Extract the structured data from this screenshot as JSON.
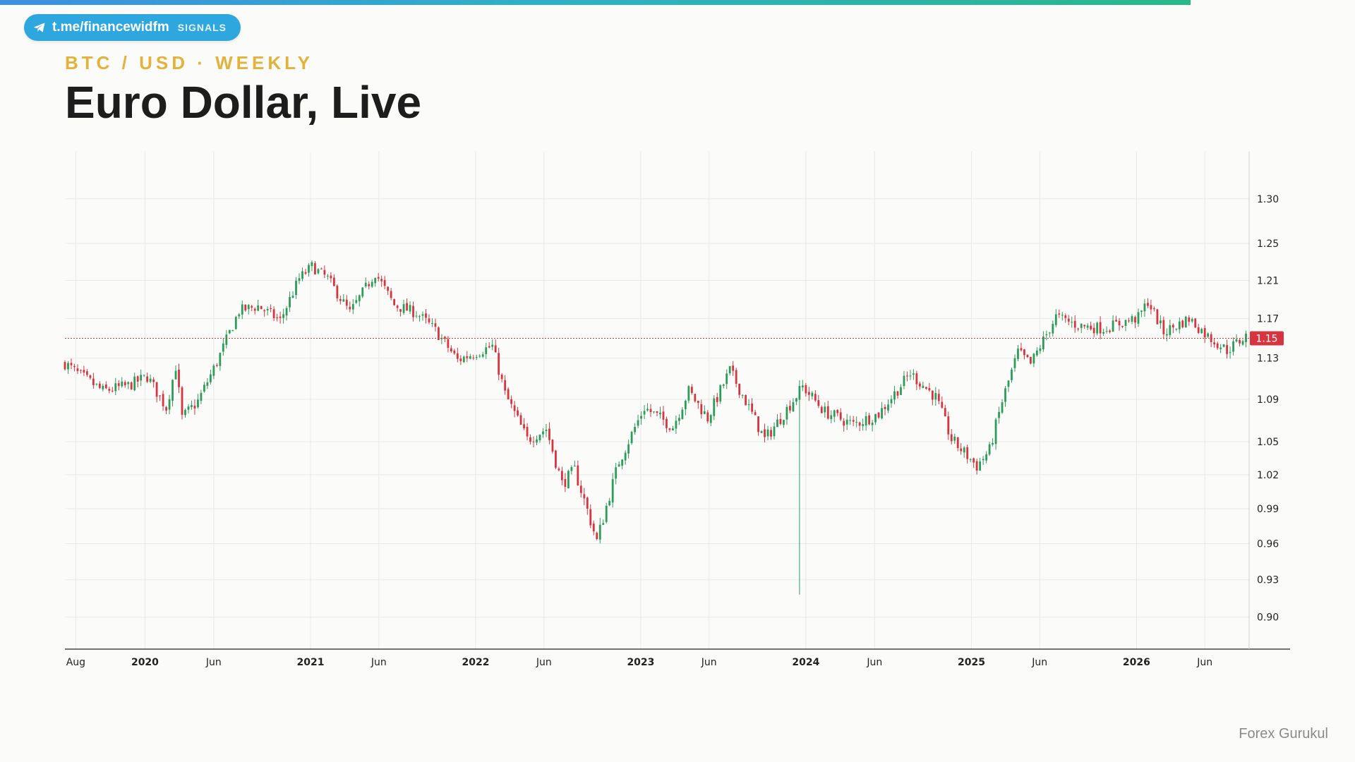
{
  "header": {
    "telegram_handle": "t.me/financewidfm",
    "telegram_tag": "SIGNALS",
    "kicker": "BTC / USD · WEEKLY",
    "title": "Euro Dollar, Live"
  },
  "footer": {
    "credit": "Forex Gurukul"
  },
  "colors": {
    "up": "#2d9c5a",
    "down": "#d6353f",
    "grid": "#e9e9e9",
    "price_marker": "#d6353f",
    "kicker": "#e3b23a",
    "badge": "#2ea6de"
  },
  "chart_data": {
    "type": "candlestick",
    "timeframe": "weekly",
    "y_scale": "log",
    "ylim": [
      0.875,
      1.355
    ],
    "y_ticks": [
      1.3,
      1.25,
      1.21,
      1.17,
      1.13,
      1.09,
      1.05,
      1.02,
      0.99,
      0.96,
      0.93,
      0.9
    ],
    "y_tick_labels": [
      "1.30",
      "1.25",
      "1.21",
      "1.17",
      "1.13",
      "1.09",
      "1.05",
      "1.02",
      "0.99",
      "0.96",
      "0.93",
      "0.90"
    ],
    "x_range": [
      "2019-07-08",
      "2026-09-07"
    ],
    "x_ticks": [
      {
        "date": "2019-08-01",
        "label": "Aug",
        "major": false
      },
      {
        "date": "2020-01-01",
        "label": "2020",
        "major": true
      },
      {
        "date": "2020-06-01",
        "label": "Jun",
        "major": false
      },
      {
        "date": "2021-01-01",
        "label": "2021",
        "major": true
      },
      {
        "date": "2021-06-01",
        "label": "Jun",
        "major": false
      },
      {
        "date": "2022-01-01",
        "label": "2022",
        "major": true
      },
      {
        "date": "2022-06-01",
        "label": "Jun",
        "major": false
      },
      {
        "date": "2023-01-01",
        "label": "2023",
        "major": true
      },
      {
        "date": "2023-06-01",
        "label": "Jun",
        "major": false
      },
      {
        "date": "2024-01-01",
        "label": "2024",
        "major": true
      },
      {
        "date": "2024-06-01",
        "label": "Jun",
        "major": false
      },
      {
        "date": "2025-01-01",
        "label": "2025",
        "major": true
      },
      {
        "date": "2025-06-01",
        "label": "Jun",
        "major": false
      },
      {
        "date": "2026-01-01",
        "label": "2026",
        "major": true
      },
      {
        "date": "2026-06-01",
        "label": "Jun",
        "major": false
      }
    ],
    "last_price": 1.15,
    "last_price_label": "1.15",
    "grid": true,
    "price_path": [
      [
        "2019-07-08",
        1.125
      ],
      [
        "2019-08-05",
        1.115
      ],
      [
        "2019-09-30",
        1.098
      ],
      [
        "2019-11-25",
        1.103
      ],
      [
        "2020-01-06",
        1.112
      ],
      [
        "2020-02-17",
        1.082
      ],
      [
        "2020-03-09",
        1.122
      ],
      [
        "2020-03-23",
        1.072
      ],
      [
        "2020-04-27",
        1.088
      ],
      [
        "2020-06-08",
        1.126
      ],
      [
        "2020-07-27",
        1.178
      ],
      [
        "2020-09-07",
        1.183
      ],
      [
        "2020-10-26",
        1.168
      ],
      [
        "2020-12-07",
        1.212
      ],
      [
        "2021-01-04",
        1.225
      ],
      [
        "2021-02-08",
        1.212
      ],
      [
        "2021-03-29",
        1.176
      ],
      [
        "2021-05-24",
        1.218
      ],
      [
        "2021-07-05",
        1.184
      ],
      [
        "2021-08-23",
        1.176
      ],
      [
        "2021-10-04",
        1.158
      ],
      [
        "2021-11-22",
        1.128
      ],
      [
        "2022-01-03",
        1.136
      ],
      [
        "2022-02-07",
        1.142
      ],
      [
        "2022-03-07",
        1.095
      ],
      [
        "2022-04-25",
        1.052
      ],
      [
        "2022-06-06",
        1.062
      ],
      [
        "2022-07-11",
        1.012
      ],
      [
        "2022-08-08",
        1.024
      ],
      [
        "2022-09-26",
        0.962
      ],
      [
        "2022-11-14",
        1.032
      ],
      [
        "2023-01-09",
        1.082
      ],
      [
        "2023-03-13",
        1.064
      ],
      [
        "2023-04-17",
        1.098
      ],
      [
        "2023-05-29",
        1.072
      ],
      [
        "2023-07-17",
        1.118
      ],
      [
        "2023-08-28",
        1.082
      ],
      [
        "2023-10-02",
        1.052
      ],
      [
        "2023-11-06",
        1.072
      ],
      [
        "2023-12-25",
        1.102
      ],
      [
        "2024-02-12",
        1.078
      ],
      [
        "2024-04-15",
        1.066
      ],
      [
        "2024-06-10",
        1.076
      ],
      [
        "2024-08-19",
        1.115
      ],
      [
        "2024-10-14",
        1.092
      ],
      [
        "2024-11-18",
        1.052
      ],
      [
        "2025-01-13",
        1.028
      ],
      [
        "2025-02-10",
        1.042
      ],
      [
        "2025-03-10",
        1.088
      ],
      [
        "2025-04-14",
        1.136
      ],
      [
        "2025-05-12",
        1.124
      ],
      [
        "2025-07-07",
        1.172
      ],
      [
        "2025-08-25",
        1.163
      ],
      [
        "2025-10-20",
        1.16
      ],
      [
        "2026-01-05",
        1.171
      ],
      [
        "2026-01-26",
        1.188
      ],
      [
        "2026-03-02",
        1.156
      ],
      [
        "2026-04-27",
        1.17
      ],
      [
        "2026-06-08",
        1.152
      ],
      [
        "2026-07-20",
        1.138
      ],
      [
        "2026-08-31",
        1.152
      ]
    ],
    "spike": {
      "date": "2023-12-18",
      "low": 0.918
    }
  }
}
